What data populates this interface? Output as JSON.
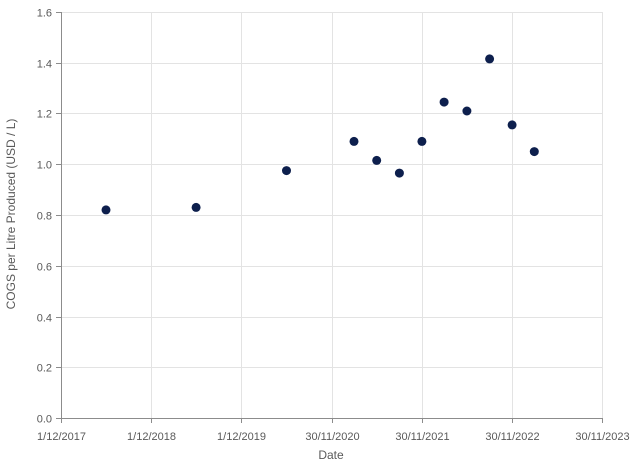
{
  "chart_data": {
    "type": "scatter",
    "xlabel": "Date",
    "ylabel": "COGS per Litre Produced (USD / L)",
    "x_tick_labels": [
      "1/12/2017",
      "1/12/2018",
      "1/12/2019",
      "30/11/2020",
      "30/11/2021",
      "30/11/2022",
      "30/11/2023"
    ],
    "y_tick_labels": [
      "0.0",
      "0.2",
      "0.4",
      "0.6",
      "0.8",
      "1.0",
      "1.2",
      "1.4",
      "1.6"
    ],
    "ylim": [
      0,
      1.6
    ],
    "y_step": 0.2,
    "xlim": [
      "2017-12-01",
      "2023-11-30"
    ],
    "grid": true,
    "point_color": "#0d1f4d",
    "series": [
      {
        "points": [
          {
            "x": "2018-06-01",
            "y": 0.82
          },
          {
            "x": "2019-06-01",
            "y": 0.83
          },
          {
            "x": "2020-06-01",
            "y": 0.975
          },
          {
            "x": "2021-03-01",
            "y": 1.09
          },
          {
            "x": "2021-06-01",
            "y": 1.015
          },
          {
            "x": "2021-09-01",
            "y": 0.965
          },
          {
            "x": "2021-12-01",
            "y": 1.09
          },
          {
            "x": "2022-03-01",
            "y": 1.245
          },
          {
            "x": "2022-06-01",
            "y": 1.21
          },
          {
            "x": "2022-09-01",
            "y": 1.415
          },
          {
            "x": "2022-12-01",
            "y": 1.155
          },
          {
            "x": "2023-03-01",
            "y": 1.05
          }
        ]
      }
    ]
  }
}
